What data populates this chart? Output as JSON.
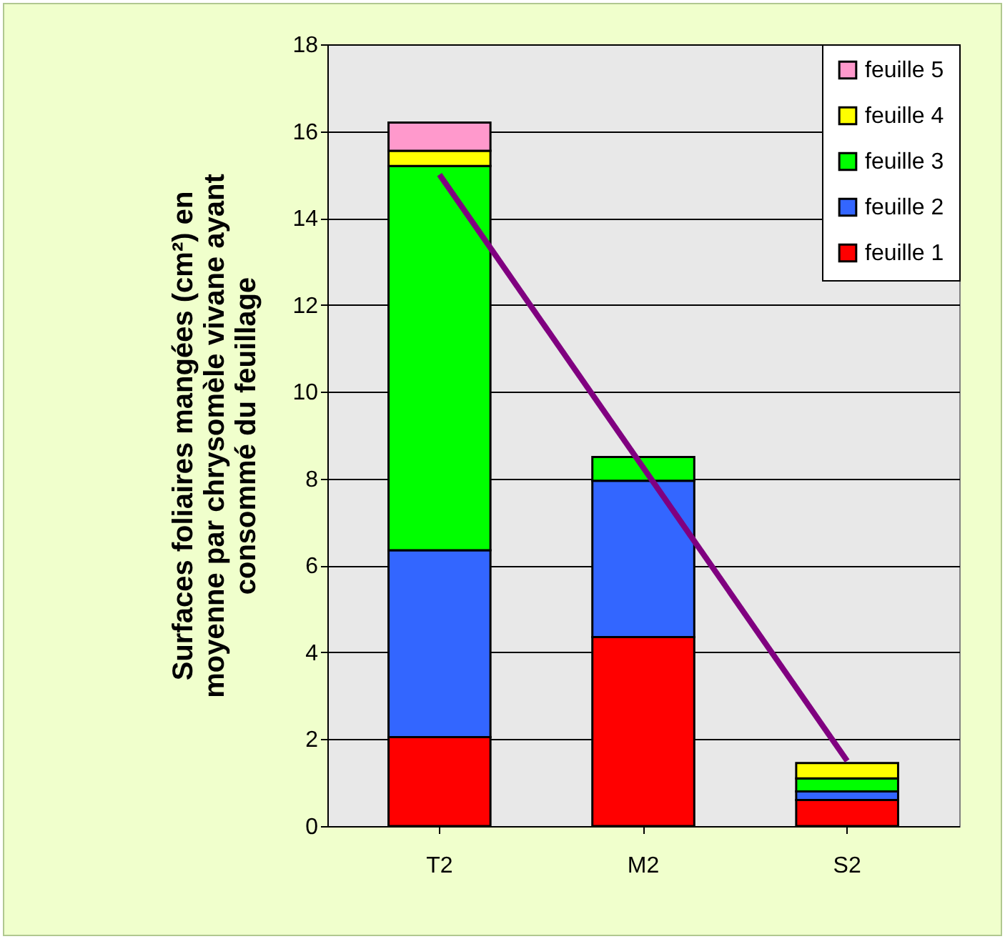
{
  "chart_data": {
    "type": "bar",
    "stacked": true,
    "ylabel": "Surfaces foliaires mangées (cm²) en moyenne par chrysomèle vivane ayant consommé du feuillage",
    "categories": [
      "T2",
      "M2",
      "S2"
    ],
    "series": [
      {
        "name": "feuille 1",
        "color": "#ff0000",
        "values": [
          2.05,
          4.35,
          0.6
        ]
      },
      {
        "name": "feuille 2",
        "color": "#3366ff",
        "values": [
          4.3,
          3.6,
          0.2
        ]
      },
      {
        "name": "feuille 3",
        "color": "#00ff00",
        "values": [
          8.85,
          0.55,
          0.3
        ]
      },
      {
        "name": "feuille 4",
        "color": "#ffff00",
        "values": [
          0.35,
          0,
          0.35
        ]
      },
      {
        "name": "feuille 5",
        "color": "#ff99cc",
        "values": [
          0.65,
          0,
          0
        ]
      },
      {
        "type": "line",
        "color": "#800080",
        "values": [
          15,
          8.25,
          1.5
        ]
      }
    ],
    "ylim": [
      0,
      18
    ],
    "yticks": [
      0,
      2,
      4,
      6,
      8,
      10,
      12,
      14,
      16,
      18
    ],
    "grid": "y",
    "legend": "top right"
  }
}
